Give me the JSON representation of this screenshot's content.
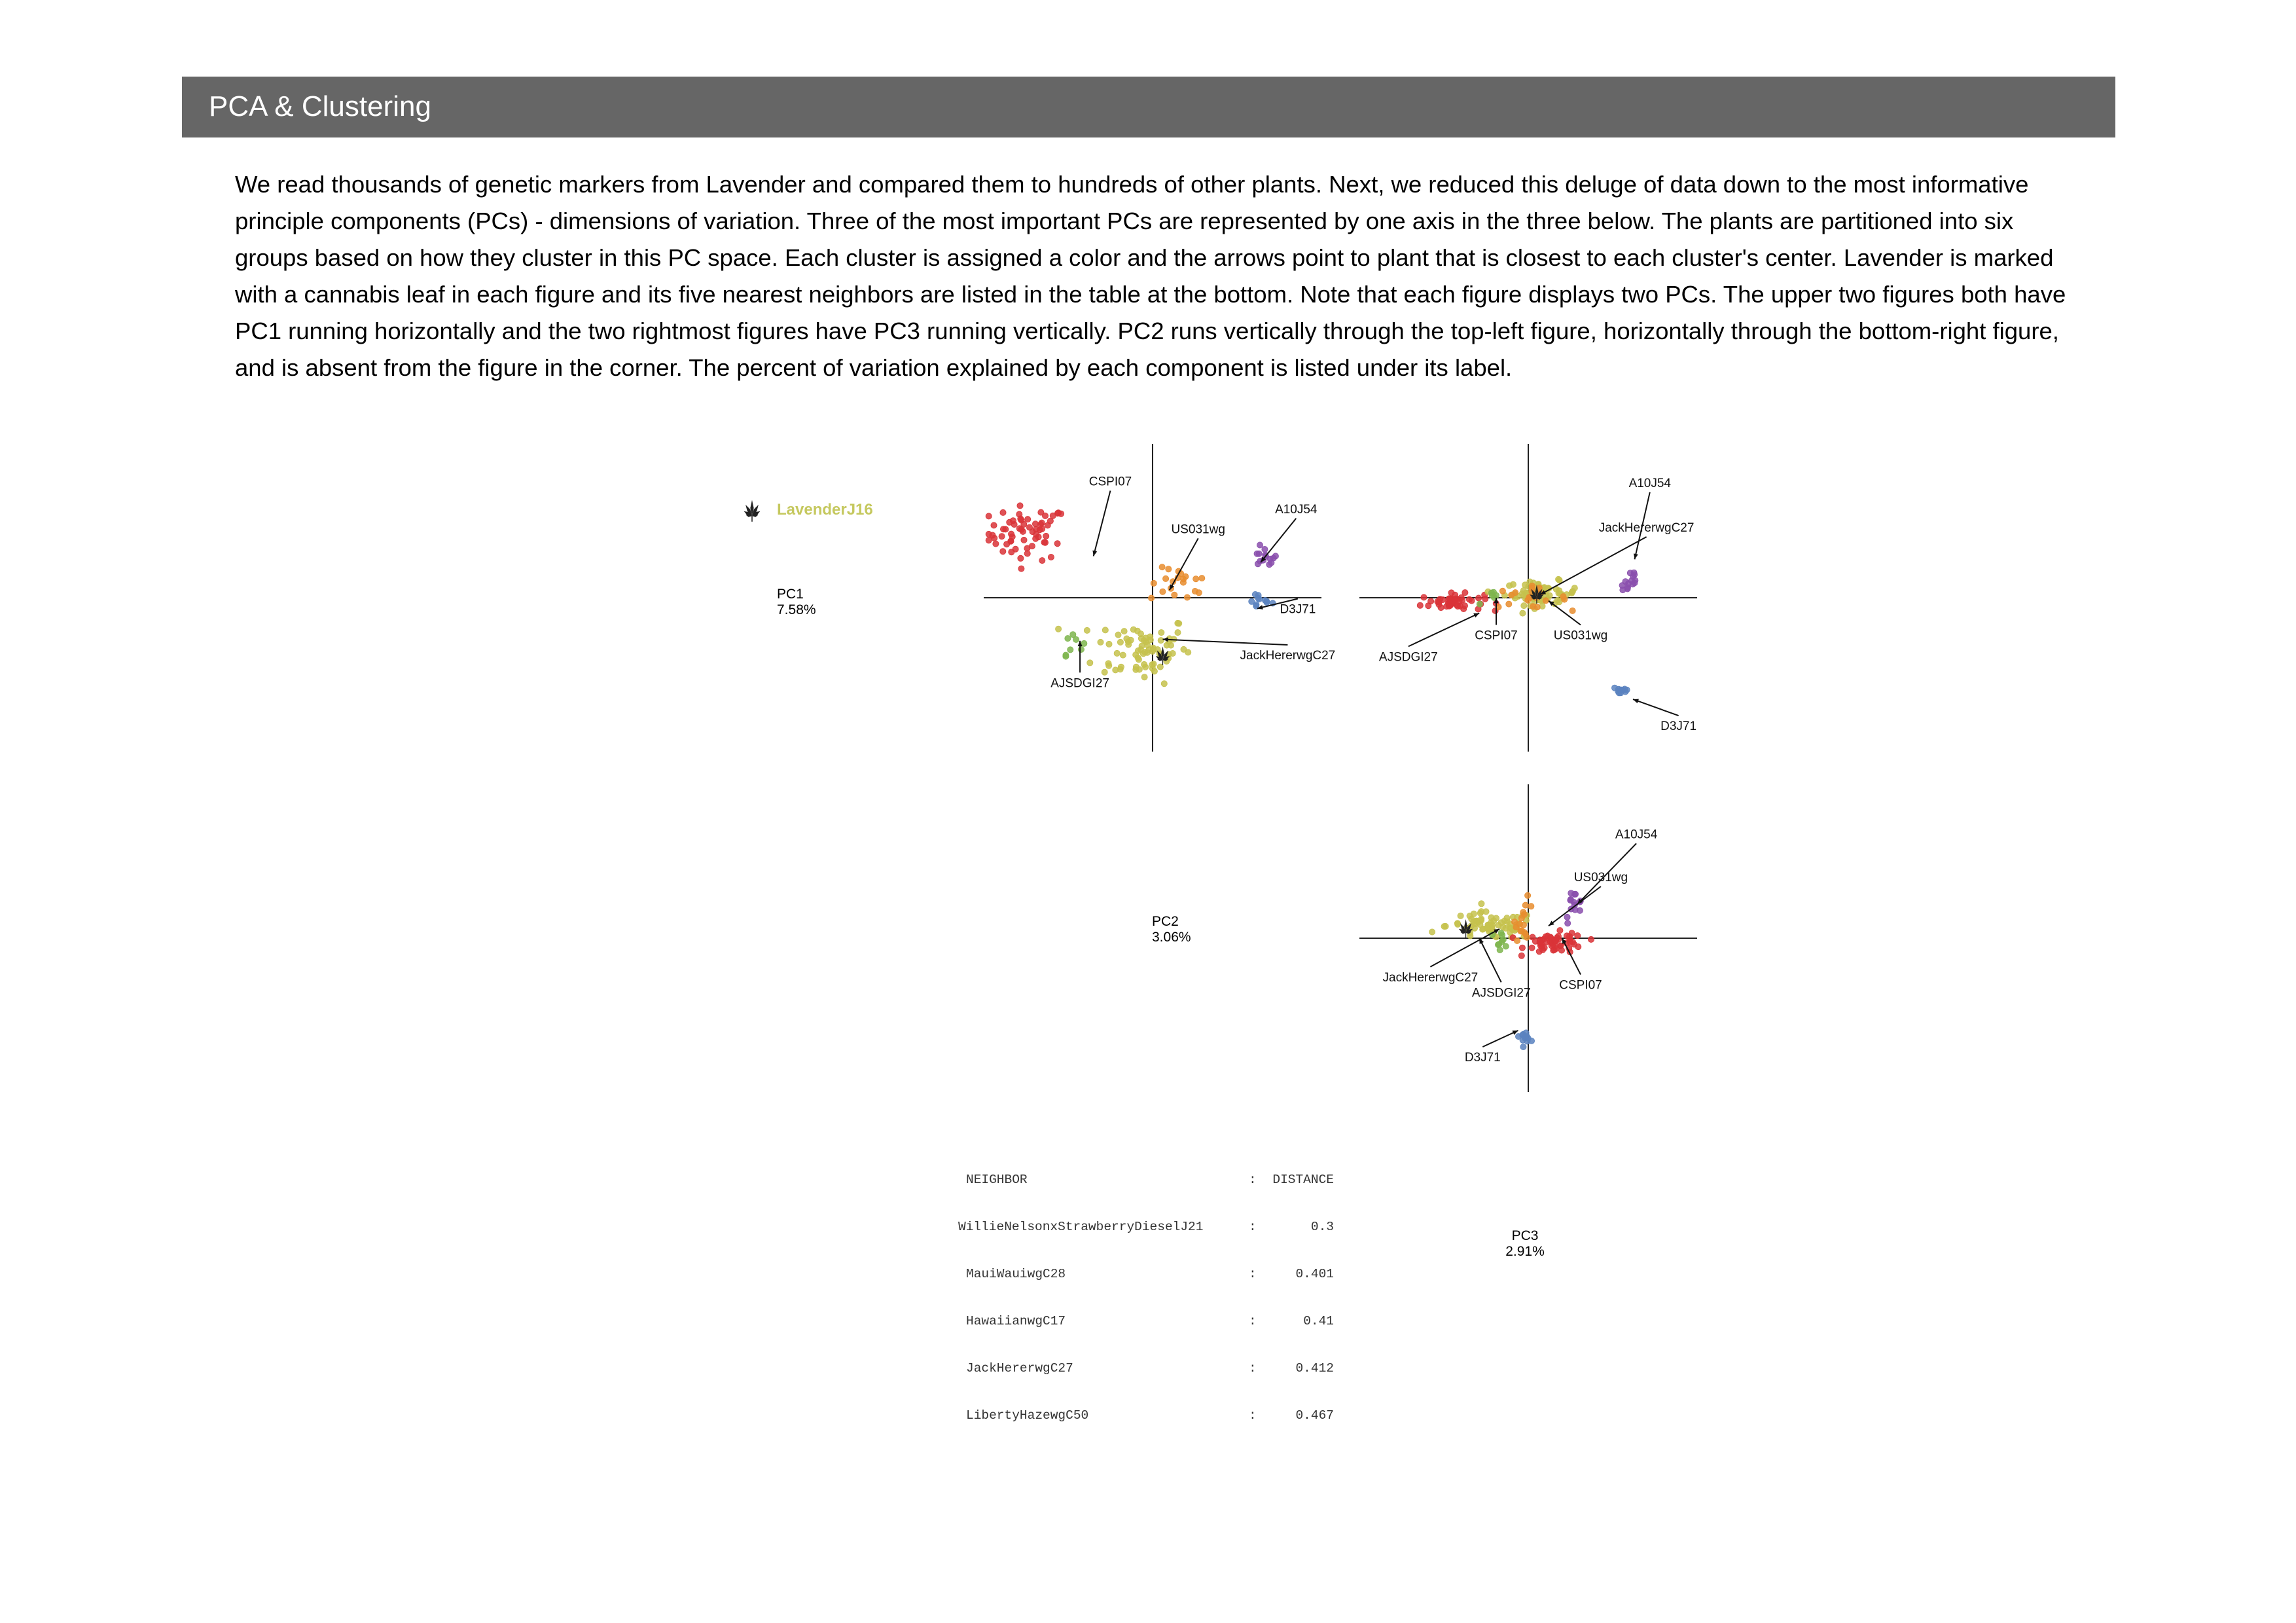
{
  "header": {
    "title": "PCA & Clustering"
  },
  "intro": "We read thousands of genetic markers from Lavender and compared them to hundreds of other plants. Next, we reduced this deluge of data down to the most informative principle components (PCs) - dimensions of variation. Three of the most important PCs are represented by one axis in the three below. The plants are partitioned into six groups based on how they cluster in this PC space. Each cluster is assigned a color and the arrows point to plant that is closest to each cluster's center. Lavender is marked with a cannabis leaf in each figure and its five nearest neighbors are listed in the table at the bottom. Note that each figure displays two PCs. The upper two figures both have PC1 running horizontally and the two rightmost figures have PC3 running vertically. PC2 runs vertically through the top-left figure, horizontally through the bottom-right figure, and is absent from the figure in the corner. The percent of variation explained by each component is listed under its label.",
  "legend": {
    "sample": "LavenderJ16",
    "sample_color": "#c5c85e",
    "icon": "cannabis-leaf-icon"
  },
  "cluster_colors": {
    "red": "#d93438",
    "purple": "#8a4fad",
    "blue": "#5a83bf",
    "green": "#7eb54e",
    "orange": "#e88d2f",
    "yellow": "#c5c24d"
  },
  "component_labels": [
    {
      "name": "PC1",
      "pct": "7.58%"
    },
    {
      "name": "PC2",
      "pct": "3.06%"
    },
    {
      "name": "PC3",
      "pct": "2.91%"
    }
  ],
  "chart_data": [
    {
      "type": "scatter",
      "panel": "top-left",
      "x_axis": "PC1",
      "y_axis": "PC2",
      "clusters": [
        {
          "color": "red",
          "center": [
            -0.74,
            0.42
          ],
          "spread": [
            0.22,
            0.16
          ],
          "n": 62
        },
        {
          "color": "purple",
          "center": [
            0.66,
            0.26
          ],
          "spread": [
            0.07,
            0.06
          ],
          "n": 14
        },
        {
          "color": "blue",
          "center": [
            0.63,
            -0.02
          ],
          "spread": [
            0.07,
            0.05
          ],
          "n": 11
        },
        {
          "color": "orange",
          "center": [
            0.16,
            0.08
          ],
          "spread": [
            0.16,
            0.1
          ],
          "n": 20
        },
        {
          "color": "yellow",
          "center": [
            -0.06,
            -0.33
          ],
          "spread": [
            0.26,
            0.2
          ],
          "n": 75
        },
        {
          "color": "green",
          "center": [
            -0.48,
            -0.28
          ],
          "spread": [
            0.06,
            0.08
          ],
          "n": 8
        }
      ],
      "sample_point": [
        0.06,
        -0.38
      ],
      "annotations": [
        {
          "label": "CSPI07",
          "point": [
            -0.35,
            0.27
          ],
          "text_at": [
            -0.25,
            0.73
          ]
        },
        {
          "label": "US031wg",
          "point": [
            0.1,
            0.05
          ],
          "text_at": [
            0.27,
            0.42
          ]
        },
        {
          "label": "A10J54",
          "point": [
            0.64,
            0.23
          ],
          "text_at": [
            0.85,
            0.55
          ]
        },
        {
          "label": "D3J71",
          "point": [
            0.62,
            -0.07
          ],
          "text_at": [
            0.86,
            -0.1
          ]
        },
        {
          "label": "JackHererwgC27",
          "point": [
            0.06,
            -0.27
          ],
          "text_at": [
            0.8,
            -0.4
          ]
        },
        {
          "label": "AJSDGI27",
          "point": [
            -0.43,
            -0.28
          ],
          "text_at": [
            -0.43,
            -0.58
          ]
        }
      ]
    },
    {
      "type": "scatter",
      "panel": "top-right",
      "x_axis": "PC1",
      "y_axis": "PC3",
      "clusters": [
        {
          "color": "red",
          "center": [
            -0.45,
            -0.03
          ],
          "spread": [
            0.17,
            0.05
          ],
          "n": 48
        },
        {
          "color": "yellow",
          "center": [
            0.08,
            0.03
          ],
          "spread": [
            0.2,
            0.07
          ],
          "n": 65
        },
        {
          "color": "orange",
          "center": [
            -0.01,
            0.0
          ],
          "spread": [
            0.22,
            0.06
          ],
          "n": 22
        },
        {
          "color": "green",
          "center": [
            -0.2,
            0.0
          ],
          "spread": [
            0.08,
            0.04
          ],
          "n": 6
        },
        {
          "color": "purple",
          "center": [
            0.6,
            0.11
          ],
          "spread": [
            0.05,
            0.09
          ],
          "n": 14
        },
        {
          "color": "blue",
          "center": [
            0.55,
            -0.6
          ],
          "spread": [
            0.05,
            0.03
          ],
          "n": 12
        }
      ],
      "sample_point": [
        0.05,
        0.02
      ],
      "annotations": [
        {
          "label": "A10J54",
          "point": [
            0.63,
            0.25
          ],
          "text_at": [
            0.72,
            0.72
          ]
        },
        {
          "label": "JackHererwgC27",
          "point": [
            0.07,
            0.02
          ],
          "text_at": [
            0.7,
            0.43
          ]
        },
        {
          "label": "CSPI07",
          "point": [
            -0.19,
            0.0
          ],
          "text_at": [
            -0.19,
            -0.27
          ]
        },
        {
          "label": "US031wg",
          "point": [
            0.12,
            -0.02
          ],
          "text_at": [
            0.31,
            -0.27
          ]
        },
        {
          "label": "AJSDGI27",
          "point": [
            -0.29,
            -0.1
          ],
          "text_at": [
            -0.71,
            -0.41
          ]
        },
        {
          "label": "D3J71",
          "point": [
            0.62,
            -0.66
          ],
          "text_at": [
            0.89,
            -0.86
          ]
        }
      ]
    },
    {
      "type": "scatter",
      "panel": "bottom-right",
      "x_axis": "PC2",
      "y_axis": "PC3",
      "clusters": [
        {
          "color": "yellow",
          "center": [
            -0.22,
            0.08
          ],
          "spread": [
            0.24,
            0.08
          ],
          "n": 70
        },
        {
          "color": "red",
          "center": [
            0.16,
            -0.03
          ],
          "spread": [
            0.16,
            0.06
          ],
          "n": 55
        },
        {
          "color": "orange",
          "center": [
            -0.02,
            0.12
          ],
          "spread": [
            0.05,
            0.12
          ],
          "n": 16
        },
        {
          "color": "purple",
          "center": [
            0.27,
            0.21
          ],
          "spread": [
            0.05,
            0.1
          ],
          "n": 14
        },
        {
          "color": "green",
          "center": [
            -0.17,
            -0.01
          ],
          "spread": [
            0.06,
            0.05
          ],
          "n": 9
        },
        {
          "color": "blue",
          "center": [
            -0.02,
            -0.64
          ],
          "spread": [
            0.03,
            0.03
          ],
          "n": 12
        }
      ],
      "sample_point": [
        -0.37,
        0.06
      ],
      "annotations": [
        {
          "label": "A10J54",
          "point": [
            0.29,
            0.22
          ],
          "text_at": [
            0.64,
            0.65
          ]
        },
        {
          "label": "US031wg",
          "point": [
            0.12,
            0.08
          ],
          "text_at": [
            0.43,
            0.37
          ]
        },
        {
          "label": "JackHererwgC27",
          "point": [
            -0.17,
            0.06
          ],
          "text_at": [
            -0.58,
            -0.28
          ]
        },
        {
          "label": "AJSDGI27",
          "point": [
            -0.29,
            0.0
          ],
          "text_at": [
            -0.16,
            -0.38
          ]
        },
        {
          "label": "CSPI07",
          "point": [
            0.2,
            0.0
          ],
          "text_at": [
            0.31,
            -0.33
          ]
        },
        {
          "label": "D3J71",
          "point": [
            -0.06,
            -0.6
          ],
          "text_at": [
            -0.27,
            -0.8
          ]
        }
      ]
    }
  ],
  "neighbor_table": {
    "headers": {
      "name": "NEIGHBOR",
      "sep": ":",
      "dist": "DISTANCE"
    },
    "rows": [
      {
        "name": "WillieNelsonxStrawberryDieselJ21",
        "sep": ":",
        "dist": "0.3"
      },
      {
        "name": "MauiWauiwgC28",
        "sep": ":",
        "dist": "0.401"
      },
      {
        "name": "HawaiianwgC17",
        "sep": ":",
        "dist": "0.41"
      },
      {
        "name": "JackHererwgC27",
        "sep": ":",
        "dist": "0.412"
      },
      {
        "name": "LibertyHazewgC50",
        "sep": ":",
        "dist": "0.467"
      }
    ]
  }
}
